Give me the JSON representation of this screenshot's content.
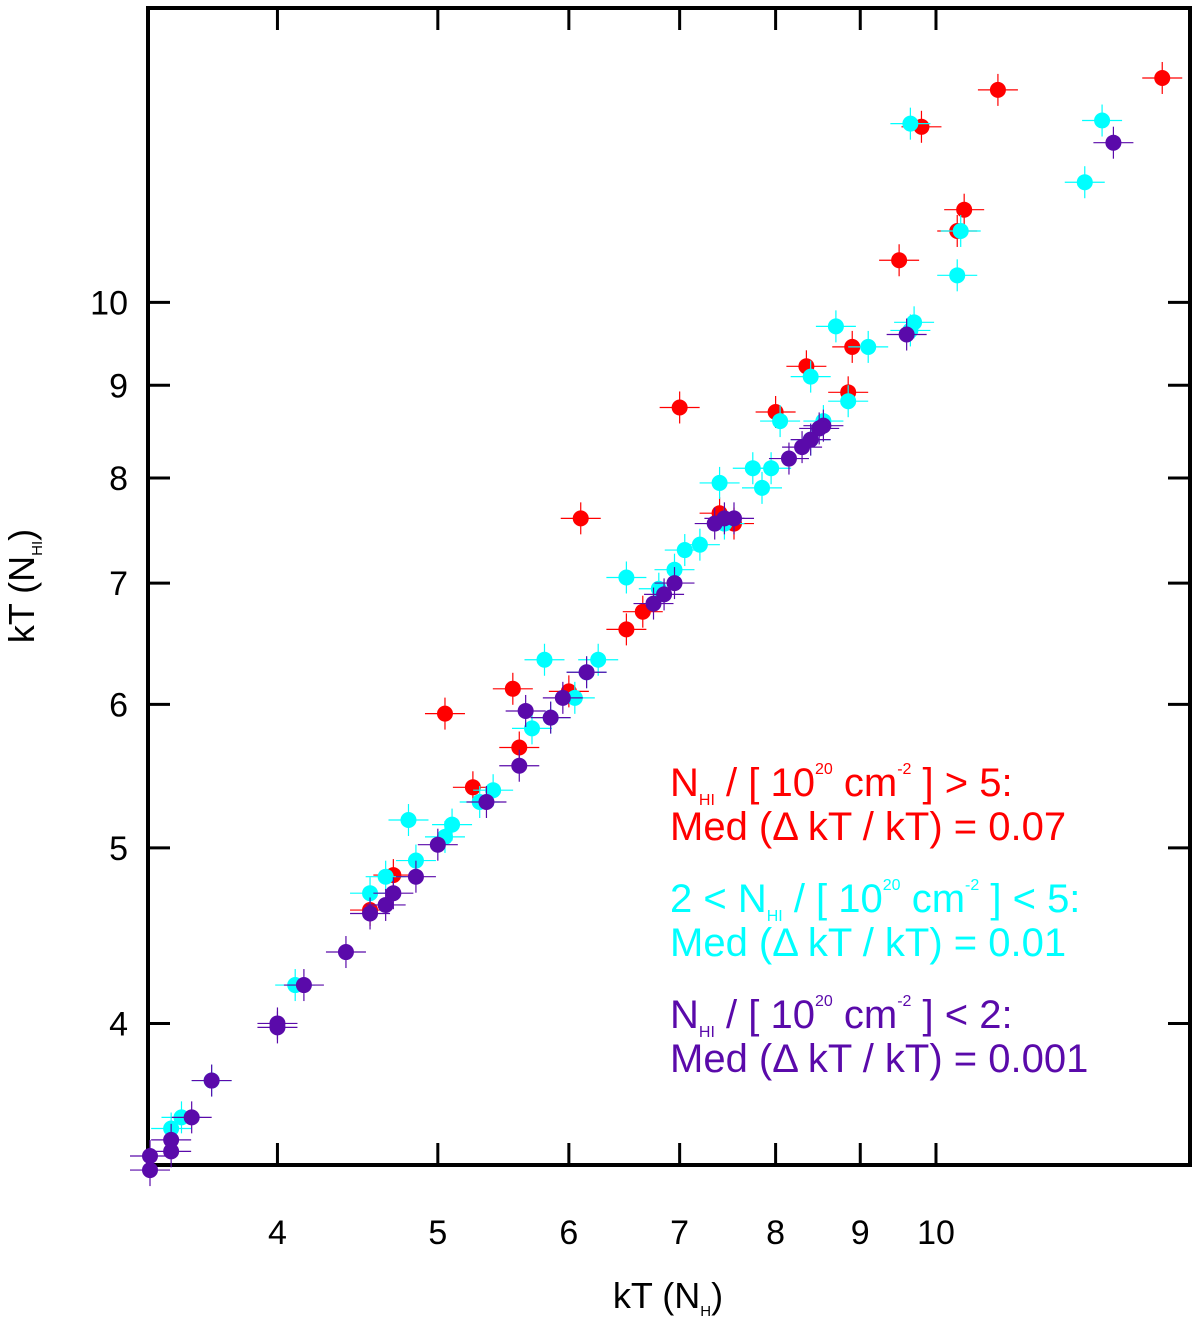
{
  "chart_data": {
    "type": "scatter",
    "title": "",
    "xlabel": {
      "main": "kT (N",
      "sub": "H",
      "close": ")"
    },
    "ylabel": {
      "main": "kT (N",
      "sub": "HI",
      "close": ")"
    },
    "xscale": "log",
    "yscale": "log",
    "xlim": [
      3.35,
      14.2
    ],
    "ylim": [
      3.35,
      14.5
    ],
    "xticks": [
      4,
      5,
      6,
      7,
      8,
      9,
      10
    ],
    "yticks": [
      4,
      5,
      6,
      7,
      8,
      9,
      10
    ],
    "legend_placement": "lower-right",
    "series": [
      {
        "name": "red",
        "color": "#ff0000",
        "legend": {
          "line1": [
            "N",
            "HI",
            " / [ 10",
            "20",
            " cm",
            "-2",
            " ] > 5:"
          ],
          "line2": "Med (Δ kT / kT) =  0.07"
        },
        "points": [
          [
            13.7,
            13.3
          ],
          [
            10.9,
            13.1
          ],
          [
            9.8,
            12.5
          ],
          [
            10.4,
            11.25
          ],
          [
            10.3,
            10.95
          ],
          [
            9.5,
            10.55
          ],
          [
            8.9,
            9.45
          ],
          [
            8.85,
            8.92
          ],
          [
            8.35,
            9.22
          ],
          [
            8.0,
            8.7
          ],
          [
            7.0,
            8.75
          ],
          [
            7.4,
            7.65
          ],
          [
            7.55,
            7.55
          ],
          [
            6.1,
            7.6
          ],
          [
            6.5,
            6.6
          ],
          [
            6.65,
            6.75
          ],
          [
            5.05,
            5.93
          ],
          [
            5.55,
            6.12
          ],
          [
            5.6,
            5.68
          ],
          [
            5.25,
            5.4
          ],
          [
            4.7,
            4.83
          ],
          [
            4.55,
            4.62
          ],
          [
            6.0,
            6.1
          ]
        ]
      },
      {
        "name": "cyan",
        "color": "#00ffff",
        "legend": {
          "line1": [
            "2 < N",
            "HI",
            " / [ 10",
            "20",
            " cm",
            "-2",
            " ] < 5:"
          ],
          "line2": "Med (Δ kT / kT) =  0.01"
        },
        "points": [
          [
            12.6,
            12.6
          ],
          [
            12.3,
            11.65
          ],
          [
            9.65,
            12.55
          ],
          [
            10.35,
            10.95
          ],
          [
            10.3,
            10.35
          ],
          [
            9.7,
            9.75
          ],
          [
            9.65,
            9.65
          ],
          [
            9.1,
            9.45
          ],
          [
            8.7,
            9.7
          ],
          [
            8.4,
            9.1
          ],
          [
            8.85,
            8.82
          ],
          [
            8.55,
            8.6
          ],
          [
            8.05,
            8.6
          ],
          [
            8.4,
            8.4
          ],
          [
            7.95,
            8.1
          ],
          [
            7.75,
            8.1
          ],
          [
            7.85,
            7.9
          ],
          [
            7.4,
            7.95
          ],
          [
            7.45,
            7.55
          ],
          [
            7.2,
            7.35
          ],
          [
            7.05,
            7.3
          ],
          [
            6.95,
            7.12
          ],
          [
            6.8,
            6.95
          ],
          [
            6.5,
            7.05
          ],
          [
            6.25,
            6.35
          ],
          [
            6.15,
            6.25
          ],
          [
            5.8,
            6.35
          ],
          [
            6.05,
            6.05
          ],
          [
            5.85,
            5.9
          ],
          [
            5.7,
            5.82
          ],
          [
            5.4,
            5.38
          ],
          [
            5.3,
            5.3
          ],
          [
            5.1,
            5.15
          ],
          [
            5.05,
            5.07
          ],
          [
            4.85,
            4.92
          ],
          [
            4.8,
            5.18
          ],
          [
            4.65,
            4.82
          ],
          [
            4.55,
            4.72
          ],
          [
            4.1,
            4.2
          ],
          [
            3.65,
            3.72
          ],
          [
            3.5,
            3.55
          ],
          [
            3.45,
            3.5
          ]
        ]
      },
      {
        "name": "purple",
        "color": "#5a0aaa",
        "legend": {
          "line1": [
            "N",
            "HI",
            " / [ 10",
            "20",
            " cm",
            "-2",
            " ] < 2:"
          ],
          "line2": "Med (Δ kT / kT) = 0.001"
        },
        "points": [
          [
            12.8,
            12.25
          ],
          [
            9.6,
            9.6
          ],
          [
            8.55,
            8.55
          ],
          [
            8.5,
            8.52
          ],
          [
            8.4,
            8.4
          ],
          [
            8.3,
            8.32
          ],
          [
            8.15,
            8.2
          ],
          [
            7.55,
            7.6
          ],
          [
            7.45,
            7.6
          ],
          [
            7.35,
            7.55
          ],
          [
            6.95,
            7.0
          ],
          [
            6.85,
            6.9
          ],
          [
            6.75,
            6.82
          ],
          [
            6.15,
            6.25
          ],
          [
            5.95,
            6.05
          ],
          [
            5.85,
            5.9
          ],
          [
            5.65,
            5.95
          ],
          [
            5.6,
            5.55
          ],
          [
            5.35,
            5.3
          ],
          [
            5.0,
            5.02
          ],
          [
            4.85,
            4.82
          ],
          [
            4.7,
            4.72
          ],
          [
            4.65,
            4.65
          ],
          [
            4.55,
            4.6
          ],
          [
            4.4,
            4.38
          ],
          [
            4.15,
            4.2
          ],
          [
            4.0,
            4.0
          ],
          [
            4.0,
            3.98
          ],
          [
            3.65,
            3.72
          ],
          [
            3.55,
            3.55
          ],
          [
            3.45,
            3.45
          ],
          [
            3.45,
            3.4
          ],
          [
            3.35,
            3.38
          ],
          [
            3.35,
            3.32
          ]
        ]
      }
    ]
  }
}
